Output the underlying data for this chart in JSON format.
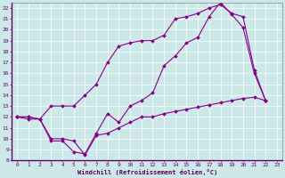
{
  "xlabel": "Windchill (Refroidissement éolien,°C)",
  "background_color": "#cce8e8",
  "line_color": "#880088",
  "xlim": [
    -0.5,
    23.5
  ],
  "ylim": [
    8,
    22.5
  ],
  "xticks": [
    0,
    1,
    2,
    3,
    4,
    5,
    6,
    7,
    8,
    9,
    10,
    11,
    12,
    13,
    14,
    15,
    16,
    17,
    18,
    19,
    20,
    21,
    22,
    23
  ],
  "yticks": [
    8,
    9,
    10,
    11,
    12,
    13,
    14,
    15,
    16,
    17,
    18,
    19,
    20,
    21,
    22
  ],
  "series1": [
    [
      0,
      12
    ],
    [
      1,
      12
    ],
    [
      2,
      11.8
    ],
    [
      3,
      13
    ],
    [
      4,
      13
    ],
    [
      5,
      13
    ],
    [
      6,
      14
    ],
    [
      7,
      15
    ],
    [
      8,
      17
    ],
    [
      9,
      18.5
    ],
    [
      10,
      18.8
    ],
    [
      11,
      19
    ],
    [
      12,
      19
    ],
    [
      13,
      19.5
    ],
    [
      14,
      21
    ],
    [
      15,
      21.2
    ],
    [
      16,
      21.5
    ],
    [
      17,
      22
    ],
    [
      18,
      22.3
    ],
    [
      19,
      21.5
    ],
    [
      20,
      21.2
    ],
    [
      21,
      16.3
    ],
    [
      22,
      13.5
    ]
  ],
  "series2": [
    [
      0,
      12
    ],
    [
      1,
      12
    ],
    [
      2,
      11.8
    ],
    [
      3,
      9.8
    ],
    [
      4,
      9.8
    ],
    [
      5,
      8.8
    ],
    [
      6,
      8.6
    ],
    [
      7,
      10.5
    ],
    [
      8,
      12.3
    ],
    [
      9,
      11.5
    ],
    [
      10,
      13
    ],
    [
      11,
      13.5
    ],
    [
      12,
      14.2
    ],
    [
      13,
      16.7
    ],
    [
      14,
      17.6
    ],
    [
      15,
      18.8
    ],
    [
      16,
      19.3
    ],
    [
      17,
      21.2
    ],
    [
      18,
      22.5
    ],
    [
      19,
      21.4
    ],
    [
      20,
      20.2
    ],
    [
      21,
      16
    ],
    [
      22,
      13.5
    ]
  ],
  "series3": [
    [
      0,
      12
    ],
    [
      1,
      11.8
    ],
    [
      2,
      11.8
    ],
    [
      3,
      10
    ],
    [
      4,
      10
    ],
    [
      5,
      9.8
    ],
    [
      6,
      8.5
    ],
    [
      7,
      10.3
    ],
    [
      8,
      10.5
    ],
    [
      9,
      11
    ],
    [
      10,
      11.5
    ],
    [
      11,
      12
    ],
    [
      12,
      12
    ],
    [
      13,
      12.3
    ],
    [
      14,
      12.5
    ],
    [
      15,
      12.7
    ],
    [
      16,
      12.9
    ],
    [
      17,
      13.1
    ],
    [
      18,
      13.3
    ],
    [
      19,
      13.5
    ],
    [
      20,
      13.7
    ],
    [
      21,
      13.8
    ],
    [
      22,
      13.5
    ]
  ]
}
